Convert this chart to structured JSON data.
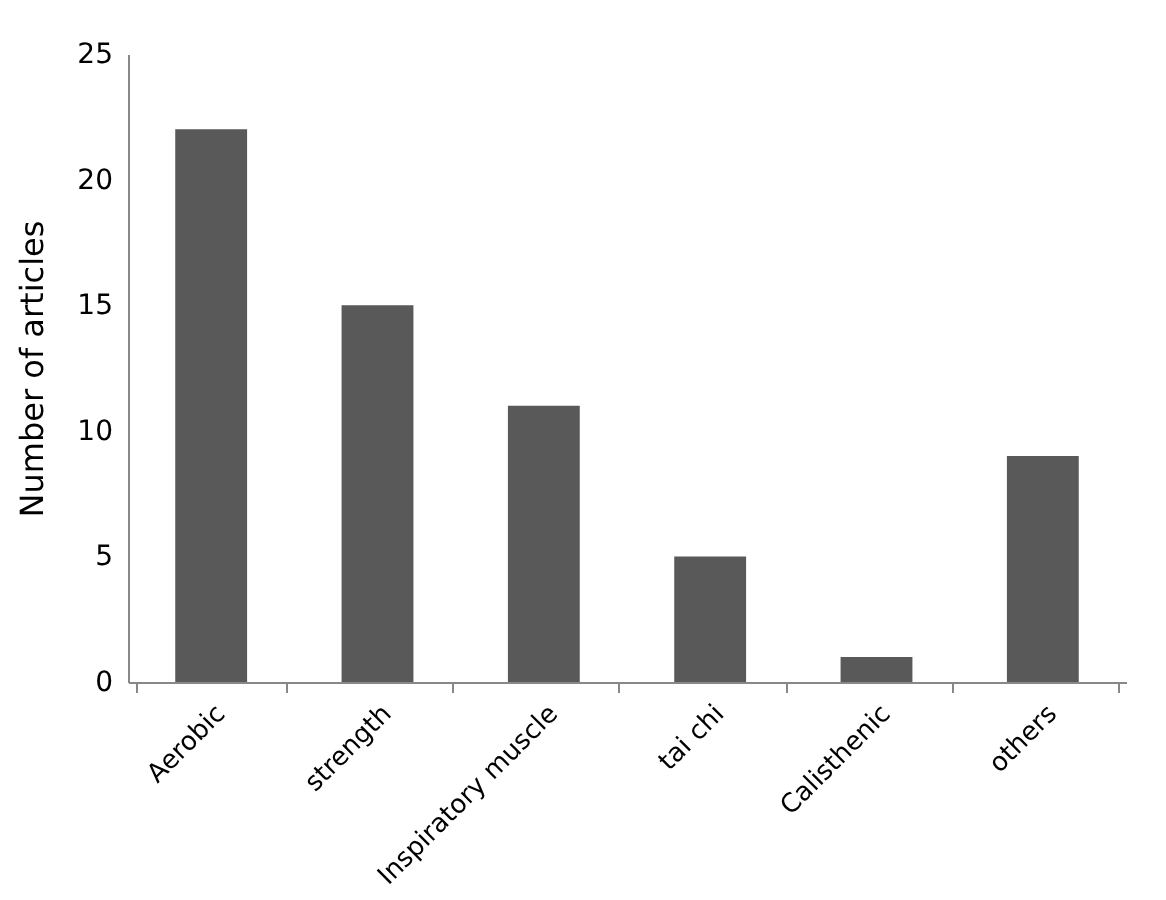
{
  "chart_data": {
    "type": "bar",
    "ylabel": "Number of articles",
    "categories": [
      "Aerobic",
      "strength",
      "Inspiratory muscle",
      "tai chi",
      "Calisthenic",
      "others"
    ],
    "values": [
      22,
      15,
      11,
      5,
      1,
      9
    ],
    "color": "#595959",
    "ylim": [
      0,
      25
    ],
    "yticks": [
      0,
      5,
      10,
      15,
      20,
      25
    ],
    "grid": false
  }
}
